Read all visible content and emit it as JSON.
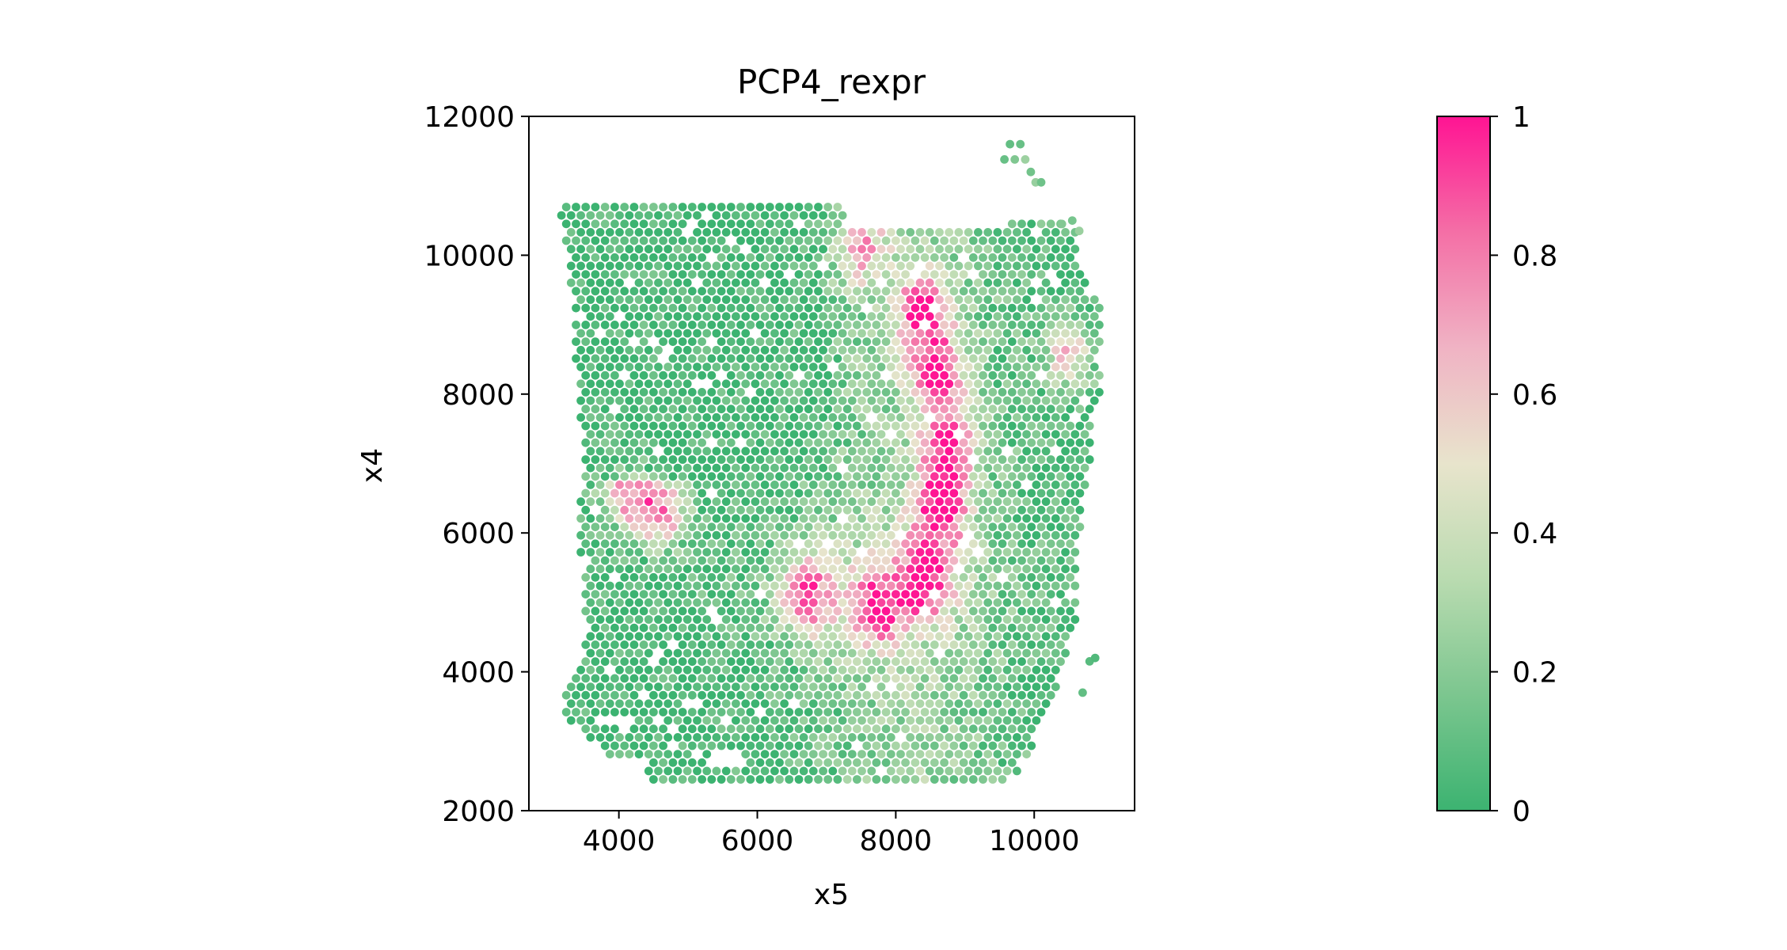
{
  "chart_data": {
    "type": "scatter",
    "title": "PCP4_rexpr",
    "xlabel": "x5",
    "ylabel": "x4",
    "xlim": [
      2700,
      11450
    ],
    "ylim": [
      2000,
      12000
    ],
    "x_ticks": [
      4000,
      6000,
      8000,
      10000
    ],
    "y_ticks": [
      2000,
      4000,
      6000,
      8000,
      10000,
      12000
    ],
    "x_tick_labels": [
      "4000",
      "6000",
      "8000",
      "10000"
    ],
    "y_tick_labels": [
      "2000",
      "4000",
      "6000",
      "8000",
      "10000",
      "12000"
    ],
    "grid": false,
    "marker": "hexagonal spot grid",
    "value_range": [
      0,
      1
    ],
    "colorbar": {
      "ticks": [
        0,
        0.2,
        0.4,
        0.6,
        0.8,
        1
      ],
      "tick_labels": [
        "0",
        "0.2",
        "0.4",
        "0.6",
        "0.8",
        "1"
      ],
      "colors": [
        "#3cb371",
        "#7cc68f",
        "#b9dbb0",
        "#e8e4cc",
        "#f0b3c4",
        "#f46fa6",
        "#ff1493"
      ]
    },
    "tissue_extent": {
      "x_range": [
        3100,
        11050
      ],
      "y_range": [
        2450,
        11600
      ]
    },
    "spot_spacing": 140,
    "high_expression_regions": [
      {
        "x": 8400,
        "y": 9200,
        "value": 0.85
      },
      {
        "x": 8600,
        "y": 8300,
        "value": 0.9
      },
      {
        "x": 8750,
        "y": 7200,
        "value": 0.85
      },
      {
        "x": 8650,
        "y": 6300,
        "value": 0.9
      },
      {
        "x": 8400,
        "y": 5300,
        "value": 0.8
      },
      {
        "x": 7700,
        "y": 4900,
        "value": 0.7
      },
      {
        "x": 6700,
        "y": 5100,
        "value": 0.75
      },
      {
        "x": 4600,
        "y": 6300,
        "value": 0.8
      },
      {
        "x": 4100,
        "y": 6600,
        "value": 0.7
      },
      {
        "x": 10500,
        "y": 8600,
        "value": 0.6
      },
      {
        "x": 7500,
        "y": 10100,
        "value": 0.55
      }
    ]
  }
}
